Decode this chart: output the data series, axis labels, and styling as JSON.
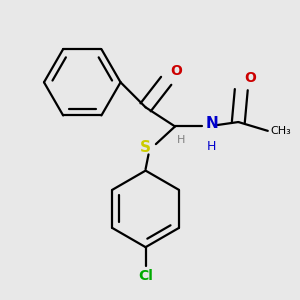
{
  "bg_color": "#e8e8e8",
  "bond_color": "#000000",
  "S_color": "#cccc00",
  "N_color": "#0000cc",
  "O_color": "#cc0000",
  "Cl_color": "#00aa00",
  "H_color": "#808080",
  "line_width": 1.6,
  "fig_size": [
    3.0,
    3.0
  ],
  "dpi": 100,
  "xlim": [
    0.0,
    1.0
  ],
  "ylim": [
    0.0,
    1.0
  ]
}
